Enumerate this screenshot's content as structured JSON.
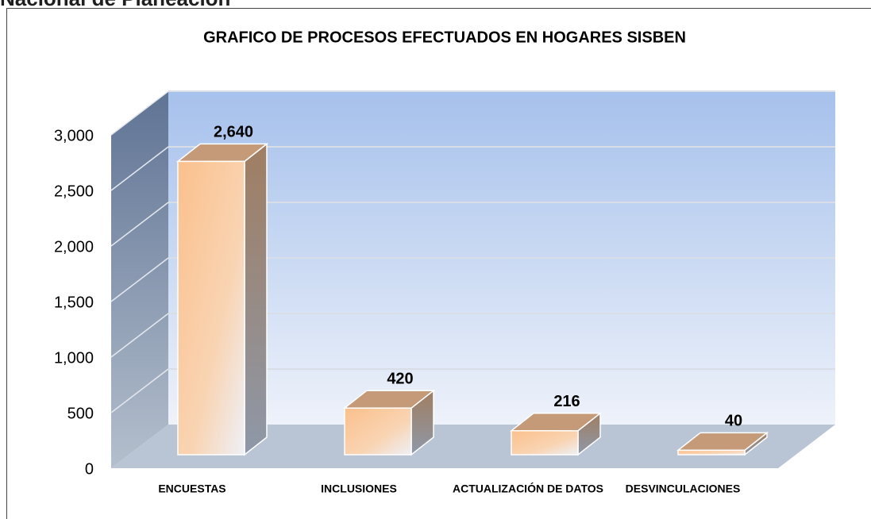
{
  "header": "Nacional de Planeación",
  "chart_data": {
    "type": "bar3d",
    "title": "GRAFICO DE PROCESOS EFECTUADOS EN HOGARES SISBEN",
    "categories": [
      "ENCUESTAS",
      "INCLUSIONES",
      "ACTUALIZACIÓN DE DATOS",
      "DESVINCULACIONES"
    ],
    "values": [
      2640,
      420,
      216,
      40
    ],
    "value_labels": [
      "2,640",
      "420",
      "216",
      "40"
    ],
    "color": "#fbc496",
    "ylim": [
      0,
      3000
    ],
    "yticks": [
      0,
      500,
      {
        "value": 1000,
        "label": "1,000"
      },
      {
        "value": 1500,
        "label": "1,500"
      },
      {
        "value": 2000,
        "label": "2,000"
      },
      {
        "value": 2500,
        "label": "2,500"
      },
      {
        "value": 3000,
        "label": "3,000"
      }
    ],
    "grid": true
  }
}
